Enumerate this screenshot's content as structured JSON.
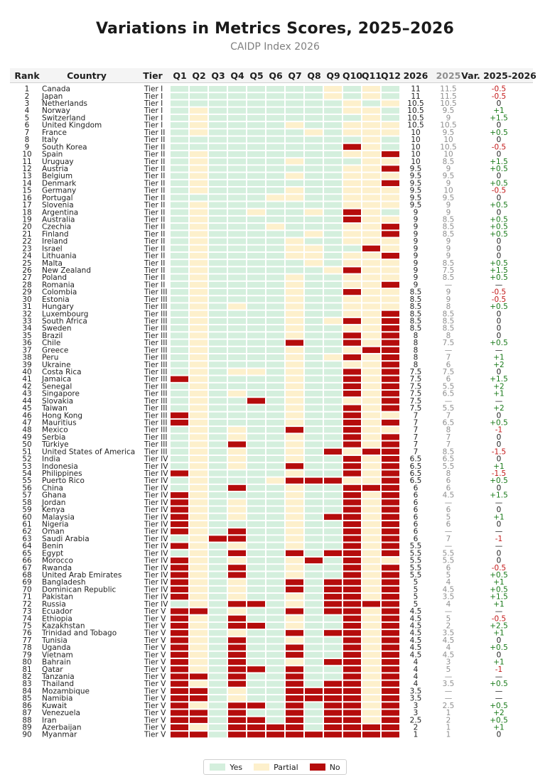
{
  "title": "Variations in Metrics Scores, 2025–2026",
  "subtitle": "CAIDP Index 2026",
  "colors": {
    "yes": "#d4efdd",
    "partial": "#fdf0cc",
    "no": "#b50c0c",
    "score2025": "#8f8f8f",
    "pos": "#1a7a1a",
    "neg": "#c41a1a",
    "neutral": "#222222"
  },
  "legend": {
    "yes": "Yes",
    "partial": "Partial",
    "no": "No"
  },
  "chart_data": {
    "type": "table",
    "columns": [
      "Rank",
      "Country",
      "Tier",
      "Q1",
      "Q2",
      "Q3",
      "Q4",
      "Q5",
      "Q6",
      "Q7",
      "Q8",
      "Q9",
      "Q10",
      "Q11",
      "Q12",
      "2026",
      "2025",
      "Var. 2025-2026"
    ],
    "rows": [
      [
        "1",
        "Canada",
        "Tier I",
        "YYYYYYYYPYPY",
        "11",
        "11.5",
        "-0.5"
      ],
      [
        "2",
        "Japan",
        "Tier I",
        "YYYYYYYYPYPY",
        "11",
        "11.5",
        "-0.5"
      ],
      [
        "3",
        "Netherlands",
        "Tier I",
        "YYYYYYYYYPYP",
        "10.5",
        "10.5",
        "0"
      ],
      [
        "4",
        "Norway",
        "Tier I",
        "YPYYYYYYYPPY",
        "10.5",
        "9.5",
        "+1"
      ],
      [
        "5",
        "Switzerland",
        "Tier I",
        "YPYYYYYYYYPY",
        "10.5",
        "9",
        "+1.5"
      ],
      [
        "6",
        "United Kingdom",
        "Tier I",
        "YPYYYYPYYPPP",
        "10.5",
        "10.5",
        "0"
      ],
      [
        "7",
        "France",
        "Tier II",
        "YPYYYYYPYPPP",
        "10",
        "9.5",
        "+0.5"
      ],
      [
        "8",
        "Italy",
        "Tier II",
        "YYYYYYYYYYPY",
        "10",
        "10",
        "0"
      ],
      [
        "9",
        "South Korea",
        "Tier II",
        "YYYYYYYYYNPY",
        "10",
        "10.5",
        "-0.5"
      ],
      [
        "10",
        "Spain",
        "Tier II",
        "YPYYYYYYYPPN",
        "10",
        "10",
        "0"
      ],
      [
        "11",
        "Uruguay",
        "Tier II",
        "YPYYYYPYYYPP",
        "10",
        "8.5",
        "+1.5"
      ],
      [
        "12",
        "Austria",
        "Tier II",
        "YPYYYYYYYPPN",
        "9.5",
        "9",
        "+0.5"
      ],
      [
        "13",
        "Belgium",
        "Tier II",
        "YPYYYYPYYPPP",
        "9.5",
        "9.5",
        "0"
      ],
      [
        "14",
        "Denmark",
        "Tier II",
        "YPYYYYYYYPPN",
        "9.5",
        "9",
        "+0.5"
      ],
      [
        "15",
        "Germany",
        "Tier II",
        "YPYYYYPYYPPP",
        "9.5",
        "10",
        "-0.5"
      ],
      [
        "16",
        "Portugal",
        "Tier II",
        "YYYYYPPYYPPP",
        "9.5",
        "9.5",
        "0"
      ],
      [
        "17",
        "Slovenia",
        "Tier II",
        "YPYYYYYYYPPP",
        "9.5",
        "9",
        "+0.5"
      ],
      [
        "18",
        "Argentina",
        "Tier II",
        "YPYYPYYPYNPY",
        "9",
        "9",
        "0"
      ],
      [
        "19",
        "Australia",
        "Tier II",
        "YPYYYYYYYNPP",
        "9",
        "8.5",
        "+0.5"
      ],
      [
        "20",
        "Czechia",
        "Tier II",
        "YPYYYPYYYPPN",
        "9",
        "8.5",
        "+0.5"
      ],
      [
        "21",
        "Finland",
        "Tier II",
        "YPYYYYYPYPPN",
        "9",
        "8.5",
        "+0.5"
      ],
      [
        "22",
        "Ireland",
        "Tier II",
        "YPYYYYPYYPPP",
        "9",
        "9",
        "0"
      ],
      [
        "23",
        "Israel",
        "Tier II",
        "YPYYYYPPYYNP",
        "9",
        "9",
        "0"
      ],
      [
        "24",
        "Lithuania",
        "Tier II",
        "YPYYYYPPYPPN",
        "9",
        "9",
        "0"
      ],
      [
        "25",
        "Malta",
        "Tier II",
        "YPYYYYYPYPPP",
        "9",
        "8.5",
        "+0.5"
      ],
      [
        "26",
        "New Zealand",
        "Tier II",
        "YPYYYYYYPNPP",
        "9",
        "7.5",
        "+1.5"
      ],
      [
        "27",
        "Poland",
        "Tier II",
        "YPYYYYPYYPPP",
        "9",
        "8.5",
        "+0.5"
      ],
      [
        "28",
        "Romania",
        "Tier II",
        "YPYYYYPYYPPN",
        "9",
        "—",
        "—"
      ],
      [
        "29",
        "Colombia",
        "Tier III",
        "YPYYYYPYYNPP",
        "8.5",
        "9",
        "-0.5"
      ],
      [
        "30",
        "Estonia",
        "Tier III",
        "YPYYYYPYYPPP",
        "8.5",
        "9",
        "-0.5"
      ],
      [
        "31",
        "Hungary",
        "Tier III",
        "YPYPYYPYYPPP",
        "8.5",
        "8",
        "+0.5"
      ],
      [
        "32",
        "Luxembourg",
        "Tier III",
        "YPYYYYPYYPPN",
        "8.5",
        "8.5",
        "0"
      ],
      [
        "33",
        "South Africa",
        "Tier III",
        "YPYYYYPYPNPN",
        "8.5",
        "8.5",
        "0"
      ],
      [
        "34",
        "Sweden",
        "Tier III",
        "YPYYYYPYYPPN",
        "8.5",
        "8.5",
        "0"
      ],
      [
        "35",
        "Brazil",
        "Tier III",
        "YPYYYYPYYNPN",
        "8",
        "8",
        "0"
      ],
      [
        "36",
        "Chile",
        "Tier III",
        "YPYYYYNYYNPN",
        "8",
        "7.5",
        "+0.5"
      ],
      [
        "37",
        "Greece",
        "Tier III",
        "YPYYYYPYYPNN",
        "8",
        "—",
        "—"
      ],
      [
        "38",
        "Peru",
        "Tier III",
        "YPYYYYPYPNPN",
        "8",
        "7",
        "+1"
      ],
      [
        "39",
        "Ukraine",
        "Tier III",
        "YPYYYYPYYPPN",
        "8",
        "6",
        "+2"
      ],
      [
        "40",
        "Costa Rica",
        "Tier III",
        "YPYPPYPYYNPN",
        "7.5",
        "7.5",
        "0"
      ],
      [
        "41",
        "Jamaica",
        "Tier III",
        "NPYYYYPYYNPN",
        "7.5",
        "6",
        "+1.5"
      ],
      [
        "42",
        "Senegal",
        "Tier III",
        "YPYYYYPYYNPN",
        "7.5",
        "5.5",
        "+2"
      ],
      [
        "43",
        "Singapore",
        "Tier III",
        "YPYPYYPYYNPN",
        "7.5",
        "6.5",
        "+1"
      ],
      [
        "44",
        "Slovakia",
        "Tier III",
        "YPYYNYPYYPPN",
        "7.5",
        "—",
        "—"
      ],
      [
        "45",
        "Taiwan",
        "Tier III",
        "YPYYYYPYYNPN",
        "7.5",
        "5.5",
        "+2"
      ],
      [
        "46",
        "Hong Kong",
        "Tier III",
        "NPYYYYPYYNPP",
        "7",
        "7",
        "0"
      ],
      [
        "47",
        "Mauritius",
        "Tier III",
        "NPYYYYPYYNPN",
        "7",
        "6.5",
        "+0.5"
      ],
      [
        "48",
        "Mexico",
        "Tier III",
        "YPYPYYNYYNPP",
        "7",
        "8",
        "-1"
      ],
      [
        "49",
        "Serbia",
        "Tier III",
        "YPYPYYPYYNPN",
        "7",
        "7",
        "0"
      ],
      [
        "50",
        "Türkiye",
        "Tier III",
        "YPYNYYPYYNPN",
        "7",
        "7",
        "0"
      ],
      [
        "51",
        "United States of America",
        "Tier III",
        "YPYPYYPYNPNN",
        "7",
        "8.5",
        "-1.5"
      ],
      [
        "52",
        "India",
        "Tier IV",
        "YPYPYYPYYNPN",
        "6.5",
        "6.5",
        "0"
      ],
      [
        "53",
        "Indonesia",
        "Tier IV",
        "YPYPYYNYYNPN",
        "6.5",
        "5.5",
        "+1"
      ],
      [
        "54",
        "Philippines",
        "Tier IV",
        "NPYYYYPYYNPN",
        "6.5",
        "8",
        "-1.5"
      ],
      [
        "55",
        "Puerto Rico",
        "Tier IV",
        "YPYYYPNNNPPN",
        "6.5",
        "6",
        "+0.5"
      ],
      [
        "56",
        "China",
        "Tier IV",
        "YPYNYYPYYNNN",
        "6",
        "6",
        "0"
      ],
      [
        "57",
        "Ghana",
        "Tier IV",
        "NPYYYYPYYNPN",
        "6",
        "4.5",
        "+1.5"
      ],
      [
        "58",
        "Jordan",
        "Tier IV",
        "NPYPYYPYYNPN",
        "6",
        "—",
        "—"
      ],
      [
        "59",
        "Kenya",
        "Tier IV",
        "NPYPYYPYYNPN",
        "6",
        "6",
        "0"
      ],
      [
        "60",
        "Malaysia",
        "Tier IV",
        "NPYPYYPYNNPN",
        "6",
        "5",
        "+1"
      ],
      [
        "61",
        "Nigeria",
        "Tier IV",
        "NPYYYYPYYNPN",
        "6",
        "6",
        "0"
      ],
      [
        "62",
        "Oman",
        "Tier IV",
        "NPYNYYPYYNPN",
        "6",
        "—",
        "—"
      ],
      [
        "63",
        "Saudi Arabia",
        "Tier IV",
        "YPNNYYPYYNPN",
        "6",
        "7",
        "-1"
      ],
      [
        "64",
        "Benin",
        "Tier IV",
        "NPYPYYPYYNPN",
        "5.5",
        "—",
        "—"
      ],
      [
        "65",
        "Egypt",
        "Tier IV",
        "YPYNYYNYNNPN",
        "5.5",
        "5.5",
        "0"
      ],
      [
        "66",
        "Morocco",
        "Tier IV",
        "NPYPYYPNYNPP",
        "5.5",
        "5.5",
        "0"
      ],
      [
        "67",
        "Rwanda",
        "Tier IV",
        "NPYNYYPYYNPN",
        "5.5",
        "6",
        "-0.5"
      ],
      [
        "68",
        "United Arab Emirates",
        "Tier IV",
        "NPYNYYPYYNPN",
        "5.5",
        "5",
        "+0.5"
      ],
      [
        "69",
        "Bangladesh",
        "Tier IV",
        "NPYPYYNYNNPN",
        "5",
        "4",
        "+1"
      ],
      [
        "70",
        "Dominican Republic",
        "Tier IV",
        "NPYPYYNYNNPN",
        "5",
        "4.5",
        "+0.5"
      ],
      [
        "71",
        "Pakistan",
        "Tier IV",
        "NPYPYYPYNNPN",
        "5",
        "3.5",
        "+1.5"
      ],
      [
        "72",
        "Russia",
        "Tier IV",
        "YPYNNYPYNNNN",
        "5",
        "4",
        "+1"
      ],
      [
        "73",
        "Ecuador",
        "Tier V",
        "NNYPYYNYNNPN",
        "4.5",
        "—",
        "—"
      ],
      [
        "74",
        "Ethiopia",
        "Tier V",
        "NPYNYYPYYNPN",
        "4.5",
        "5",
        "-0.5"
      ],
      [
        "75",
        "Kazakhstan",
        "Tier V",
        "NPYNNYPYYNPN",
        "4.5",
        "2",
        "+2.5"
      ],
      [
        "76",
        "Trinidad and Tobago",
        "Tier V",
        "NPYPYYNYNNPN",
        "4.5",
        "3.5",
        "+1"
      ],
      [
        "77",
        "Tunisia",
        "Tier V",
        "NPYNYYPYYNPN",
        "4.5",
        "4.5",
        "0"
      ],
      [
        "78",
        "Uganda",
        "Tier V",
        "NPYNYYNYYNPN",
        "4.5",
        "4",
        "+0.5"
      ],
      [
        "79",
        "Vietnam",
        "Tier V",
        "NPYNYYNYYNPN",
        "4.5",
        "4.5",
        "0"
      ],
      [
        "80",
        "Bahrain",
        "Tier V",
        "NPYNYYPYNNPN",
        "4",
        "3",
        "+1"
      ],
      [
        "81",
        "Qatar",
        "Tier V",
        "NPYNNYNYYNPN",
        "4",
        "5",
        "-1"
      ],
      [
        "82",
        "Tanzania",
        "Tier V",
        "NNYNYYNYYNPN",
        "4",
        "—",
        "—"
      ],
      [
        "83",
        "Thailand",
        "Tier V",
        "NPYNYYNYNNPN",
        "4",
        "3.5",
        "+0.5"
      ],
      [
        "84",
        "Mozambique",
        "Tier V",
        "NNYPYYNNNNPN",
        "3.5",
        "—",
        "—"
      ],
      [
        "85",
        "Namibia",
        "Tier V",
        "NNYPYYNNNNPN",
        "3.5",
        "—",
        "—"
      ],
      [
        "86",
        "Kuwait",
        "Tier V",
        "NPYNNYNYNNPN",
        "3",
        "2.5",
        "+0.5"
      ],
      [
        "87",
        "Venezuela",
        "Tier V",
        "NNYNYYNYNNPN",
        "3",
        "1",
        "+2"
      ],
      [
        "88",
        "Iran",
        "Tier V",
        "NNYNNYNYNNPN",
        "2.5",
        "2",
        "+0.5"
      ],
      [
        "89",
        "Azerbaijan",
        "Tier V",
        "NPYNNNNYNNNN",
        "2",
        "1",
        "+1"
      ],
      [
        "90",
        "Myanmar",
        "Tier V",
        "NNYNNNNNNNNN",
        "1",
        "1",
        "0"
      ]
    ]
  }
}
